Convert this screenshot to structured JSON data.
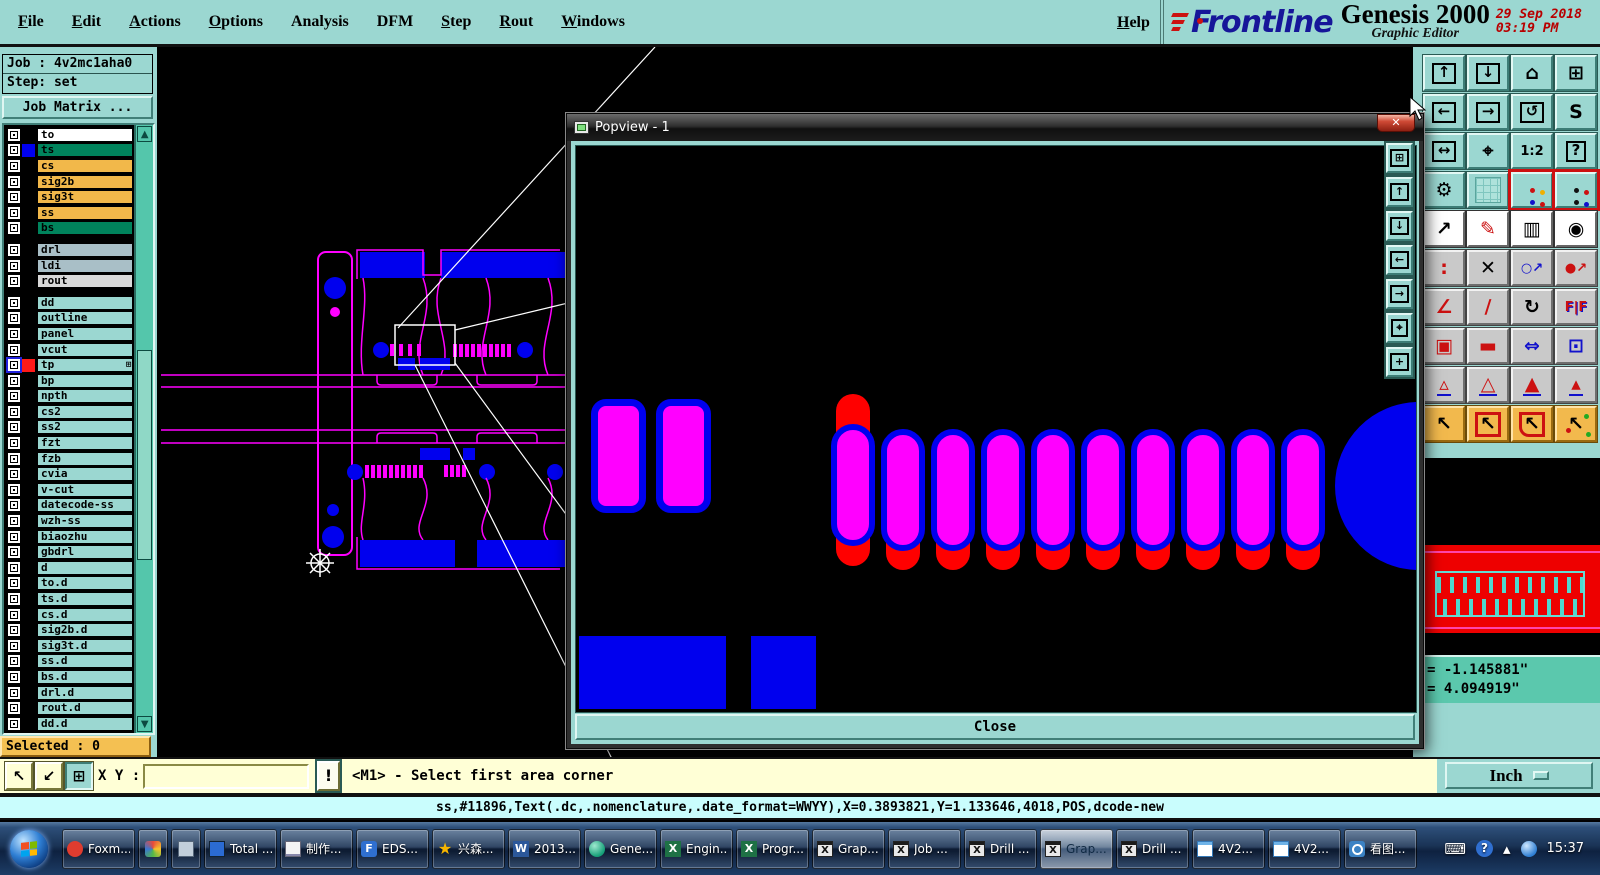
{
  "menu": {
    "items": [
      {
        "label": "File",
        "mnemonic": true
      },
      {
        "label": "Edit",
        "mnemonic": true
      },
      {
        "label": "Actions",
        "mnemonic": true
      },
      {
        "label": "Options",
        "mnemonic": true
      },
      {
        "label": "Analysis",
        "mnemonic": false
      },
      {
        "label": "DFM",
        "mnemonic": false
      },
      {
        "label": "Step",
        "mnemonic": true
      },
      {
        "label": "Rout",
        "mnemonic": true
      },
      {
        "label": "Windows",
        "mnemonic": true
      }
    ],
    "help": "Help"
  },
  "brand": {
    "logo": "Frontline",
    "product": "Genesis 2000",
    "subtitle": "Graphic Editor",
    "date": "29 Sep 2018",
    "time": "03:19 PM"
  },
  "job_panel": {
    "job": "Job : 4v2mc1aha0",
    "step": "Step: set",
    "matrix": "Job Matrix ..."
  },
  "layers": {
    "default_bg": "#9bd7d1",
    "scroll_up": "▲",
    "scroll_down": "▼",
    "groups": [
      {
        "rows": [
          {
            "name": "to",
            "bg": "#ffffff"
          },
          {
            "name": "ts",
            "bg": "#00835c",
            "swatch": "#0000ee"
          },
          {
            "name": "cs",
            "bg": "#f2b84a"
          },
          {
            "name": "sig2b",
            "bg": "#f2b84a"
          },
          {
            "name": "sig3t",
            "bg": "#f2b84a"
          },
          {
            "name": "ss",
            "bg": "#f2b84a"
          },
          {
            "name": "bs",
            "bg": "#00835c"
          }
        ]
      },
      {
        "rows": [
          {
            "name": "drl",
            "bg": "#a9bfc7"
          },
          {
            "name": "ldi",
            "bg": "#a9bfc7"
          },
          {
            "name": "rout",
            "bg": "#d9d9d9"
          }
        ]
      },
      {
        "rows": [
          {
            "name": "dd"
          },
          {
            "name": "outline"
          },
          {
            "name": "panel"
          },
          {
            "name": "vcut"
          },
          {
            "name": "tp",
            "swatch": "#ff1a1a",
            "selected": true,
            "badge": "⊞"
          },
          {
            "name": "bp"
          },
          {
            "name": "npth"
          },
          {
            "name": "cs2"
          },
          {
            "name": "ss2"
          },
          {
            "name": "fzt"
          },
          {
            "name": "fzb"
          },
          {
            "name": "cvia"
          },
          {
            "name": "v-cut"
          },
          {
            "name": "datecode-ss"
          },
          {
            "name": "wzh-ss"
          },
          {
            "name": "biaozhu"
          },
          {
            "name": "gbdrl"
          },
          {
            "name": "d"
          },
          {
            "name": "to.d"
          },
          {
            "name": "ts.d"
          },
          {
            "name": "cs.d"
          },
          {
            "name": "sig2b.d"
          },
          {
            "name": "sig3t.d"
          },
          {
            "name": "ss.d"
          },
          {
            "name": "bs.d"
          },
          {
            "name": "drl.d"
          },
          {
            "name": "rout.d"
          },
          {
            "name": "dd.d"
          }
        ]
      }
    ]
  },
  "selected": "Selected : 0",
  "cmd": {
    "buttons": [
      {
        "n": "select-pointer-tool",
        "g": "↖"
      },
      {
        "n": "snap-tool",
        "g": "↙"
      },
      {
        "n": "grid-window-tool",
        "g": "⊞"
      }
    ],
    "xy_label": "X Y :",
    "input_value": "",
    "alert": "!",
    "status": "<M1> - Select first area corner"
  },
  "units": "Inch",
  "coords": {
    "x": "= -1.145881\"",
    "y": "= 4.094919\""
  },
  "info_line": "ss,#11896,Text(.dc,.nomenclature,.date_format=WWYY),X=0.3893821,Y=1.133646,4018,POS,dcode-new",
  "popview": {
    "title": "Popview - 1",
    "close": "Close",
    "close_x": "✕"
  },
  "right_toolbar": {
    "buttons": [
      {
        "n": "view-up",
        "g": "↑",
        "c": "t bx"
      },
      {
        "n": "view-down",
        "g": "↓",
        "c": "t bx"
      },
      {
        "n": "home-view",
        "g": "⌂",
        "c": "t"
      },
      {
        "n": "split-window-xy",
        "g": "⊞",
        "c": "t"
      },
      {
        "n": "view-left",
        "g": "←",
        "c": "t bx"
      },
      {
        "n": "view-right",
        "g": "→",
        "c": "t bx"
      },
      {
        "n": "previous-view",
        "g": "↺",
        "c": "t bx"
      },
      {
        "n": "s-route",
        "g": "S",
        "c": "t"
      },
      {
        "n": "zoom-width",
        "g": "↔",
        "c": "t bx"
      },
      {
        "n": "zoom-center",
        "g": "⌖",
        "c": "t"
      },
      {
        "n": "zoom-1-2",
        "g": "1:2",
        "c": "t sm"
      },
      {
        "n": "help-tool",
        "g": "?",
        "c": "t bx"
      },
      {
        "n": "setup-tools",
        "g": "⚙",
        "c": "t"
      },
      {
        "n": "grid-toggle",
        "g": "",
        "c": "t grid"
      },
      {
        "n": "layer-colors-a",
        "g": "",
        "c": "t rb dots"
      },
      {
        "n": "layer-colors-b",
        "g": "",
        "c": "t rb dots2"
      },
      {
        "n": "select-vertex",
        "g": "↗",
        "c": "w"
      },
      {
        "n": "draw-pad",
        "g": "✎",
        "c": "w red"
      },
      {
        "n": "ruler",
        "g": "▥",
        "c": "w"
      },
      {
        "n": "select-round",
        "g": "◉",
        "c": "w"
      },
      {
        "n": "connect-pads",
        "g": ":",
        "c": "g red"
      },
      {
        "n": "erase",
        "g": "✕",
        "c": "g"
      },
      {
        "n": "copy-other-layer",
        "g": "○↗",
        "c": "g blue sm"
      },
      {
        "n": "move-other-layer",
        "g": "●↗",
        "c": "g red sm"
      },
      {
        "n": "angle-line",
        "g": "∠",
        "c": "g red"
      },
      {
        "n": "draw-line",
        "g": "∕",
        "c": "g red"
      },
      {
        "n": "rotate",
        "g": "↻",
        "c": "g"
      },
      {
        "n": "mirror",
        "g": "F|F",
        "c": "g sm redblue"
      },
      {
        "n": "swap-pad",
        "g": "▣",
        "c": "g red"
      },
      {
        "n": "break-trace",
        "g": "▬",
        "c": "g red"
      },
      {
        "n": "measure-distance",
        "g": "⇔",
        "c": "g blue"
      },
      {
        "n": "copy-shapes",
        "g": "⊡",
        "c": "g blue"
      },
      {
        "n": "height-tool-1",
        "g": "▵",
        "c": "g tri"
      },
      {
        "n": "height-tool-2",
        "g": "△",
        "c": "g tri"
      },
      {
        "n": "height-tool-3",
        "g": "▲",
        "c": "g tri"
      },
      {
        "n": "height-tool-4",
        "g": "▴",
        "c": "g tri"
      },
      {
        "n": "select-single",
        "g": "↖",
        "c": "o"
      },
      {
        "n": "select-frame",
        "g": "↖",
        "c": "o redbox"
      },
      {
        "n": "select-poly",
        "g": "↖",
        "c": "o redpent"
      },
      {
        "n": "select-net",
        "g": "↖",
        "c": "o dotsel"
      }
    ]
  },
  "vstrip": {
    "buttons": [
      {
        "n": "popview-window",
        "g": "⊞"
      },
      {
        "n": "shift-up",
        "g": "↑"
      },
      {
        "n": "shift-down",
        "g": "↓"
      },
      {
        "n": "shift-left",
        "g": "←"
      },
      {
        "n": "shift-right",
        "g": "→"
      },
      {
        "n": "zoom-in-center",
        "g": "⌖"
      },
      {
        "n": "pan-view",
        "g": "+"
      }
    ]
  },
  "taskbar": {
    "apps": [
      {
        "label": "Foxm...",
        "icon": "foxmail",
        "glyph": ""
      },
      {
        "label": "",
        "icon": "paint",
        "glyph": ""
      },
      {
        "label": "",
        "icon": "calc",
        "glyph": ""
      },
      {
        "label": "Total ...",
        "icon": "tcmd",
        "glyph": ""
      },
      {
        "label": "制作...",
        "icon": "doc",
        "glyph": ""
      },
      {
        "label": "EDS...",
        "icon": "eds",
        "glyph": "F"
      },
      {
        "label": "兴森...",
        "icon": "star",
        "glyph": "★"
      },
      {
        "label": "2013...",
        "icon": "word",
        "glyph": "W"
      },
      {
        "label": "Gene...",
        "icon": "genesis",
        "glyph": ""
      },
      {
        "label": "Engin...",
        "icon": "excel",
        "glyph": "X"
      },
      {
        "label": "Progr...",
        "icon": "excel",
        "glyph": "X"
      },
      {
        "label": "Grap...",
        "icon": "xapp",
        "glyph": "X"
      },
      {
        "label": "Job ...",
        "icon": "xapp",
        "glyph": "X"
      },
      {
        "label": "Drill ...",
        "icon": "xapp",
        "glyph": "X"
      },
      {
        "label": "Grap...",
        "icon": "xapp",
        "glyph": "X",
        "active": true
      },
      {
        "label": "Drill ...",
        "icon": "xapp",
        "glyph": "X"
      },
      {
        "label": "4V2...",
        "icon": "notepad",
        "glyph": ""
      },
      {
        "label": "4V2...",
        "icon": "notepad",
        "glyph": ""
      },
      {
        "label": "看图...",
        "icon": "viewer",
        "glyph": ""
      }
    ],
    "tray": [
      {
        "n": "keyboard-icon",
        "g": "⌨"
      },
      {
        "n": "help-icon",
        "g": "?",
        "cls": "help"
      },
      {
        "n": "show-hidden-icons",
        "g": "▴"
      },
      {
        "n": "network-icon",
        "g": "",
        "cls": "net"
      }
    ],
    "clock": "15:37"
  }
}
